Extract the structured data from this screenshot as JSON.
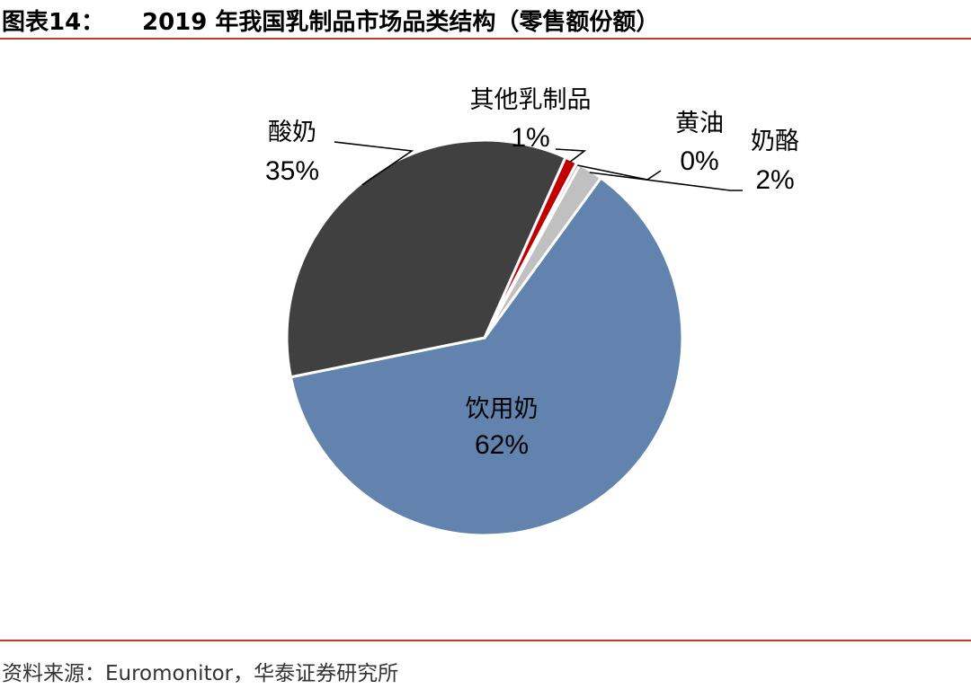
{
  "header": {
    "figure_label": "图表14：",
    "title": "2019 年我国乳制品市场品类结构（零售额份额）"
  },
  "footer": {
    "source": "资料来源：Euromonitor，华泰证券研究所"
  },
  "chart_data": {
    "type": "pie",
    "title": "2019 年我国乳制品市场品类结构（零售额份额）",
    "start_angle_deg": 36,
    "direction": "clockwise",
    "slices": [
      {
        "name": "饮用奶",
        "value": 62,
        "label": "62%",
        "color": "#6183ad"
      },
      {
        "name": "酸奶",
        "value": 35,
        "label": "35%",
        "color": "#404040"
      },
      {
        "name": "其他乳制品",
        "value": 1,
        "label": "1%",
        "color": "#c00000"
      },
      {
        "name": "黄油",
        "value": 0.3,
        "label": "0%",
        "color": "#b0b0b0"
      },
      {
        "name": "奶酪",
        "value": 2,
        "label": "2%",
        "color": "#c0c0c0"
      }
    ]
  }
}
